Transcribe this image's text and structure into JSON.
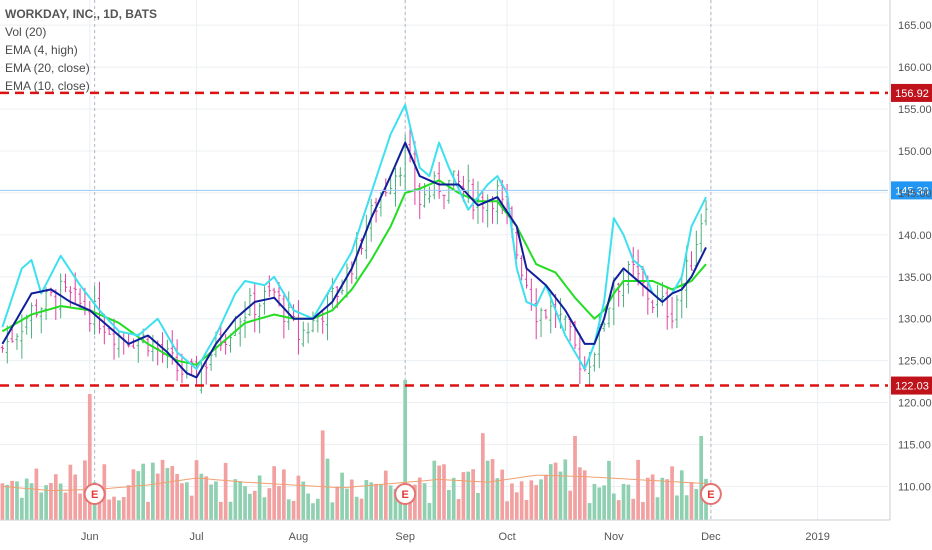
{
  "legend": {
    "title": "WORKDAY, INC., 1D, BATS",
    "vol": "Vol (20)",
    "ema_high4": "EMA (4, high)",
    "ema_close20": "EMA (20, close)",
    "ema_close10": "EMA (10, close)"
  },
  "colors": {
    "up": "#4caf7d",
    "down": "#e040a0",
    "cyan": "#3ee0f0",
    "navy": "#10209a",
    "green": "#22dd22",
    "level": "#d11",
    "current": "#2196f3",
    "vol_up": "#8fd0b0",
    "vol_down": "#f2a0a0",
    "grid": "#eceff2",
    "axis_text": "#555555"
  },
  "chart_data": {
    "type": "candlestick",
    "title": "WORKDAY, INC., 1D, BATS",
    "y_axis_ticks": [
      "165.00",
      "160.00",
      "155.00",
      "150.00",
      "145.00",
      "140.00",
      "135.00",
      "130.00",
      "125.00",
      "120.00",
      "115.00",
      "110.00"
    ],
    "ylim": [
      106,
      168
    ],
    "x_axis_ticks": [
      "Jun",
      "Jul",
      "Aug",
      "Sep",
      "Oct",
      "Nov",
      "Dec",
      "2019"
    ],
    "x_tick_index": [
      18,
      40,
      61,
      83,
      104,
      126,
      146,
      168
    ],
    "x_count": 183,
    "last_bar_index": 145,
    "earnings_markers": {
      "label": "E",
      "bar_index": [
        19,
        83,
        146
      ]
    },
    "horizontal_levels": [
      {
        "value": 156.92,
        "label": "156.92",
        "style": "dashed"
      },
      {
        "value": 122.03,
        "label": "122.03",
        "style": "dashed"
      }
    ],
    "current_price": {
      "value": 145.3,
      "label": "145.30"
    },
    "anchors": [
      [
        0,
        126.5
      ],
      [
        6,
        131
      ],
      [
        12,
        133
      ],
      [
        18,
        131
      ],
      [
        24,
        128
      ],
      [
        30,
        127.5
      ],
      [
        36,
        124
      ],
      [
        40,
        123
      ],
      [
        44,
        127
      ],
      [
        50,
        131
      ],
      [
        56,
        133
      ],
      [
        61,
        128
      ],
      [
        64,
        129.5
      ],
      [
        70,
        134
      ],
      [
        78,
        145
      ],
      [
        83,
        149.5
      ],
      [
        86,
        144
      ],
      [
        90,
        146
      ],
      [
        94,
        146
      ],
      [
        98,
        144
      ],
      [
        102,
        145
      ],
      [
        106,
        138
      ],
      [
        110,
        131
      ],
      [
        114,
        131
      ],
      [
        120,
        124
      ],
      [
        123,
        128
      ],
      [
        126,
        134
      ],
      [
        130,
        135.5
      ],
      [
        134,
        132
      ],
      [
        138,
        131
      ],
      [
        142,
        137
      ],
      [
        145,
        144.5
      ]
    ],
    "ema_high4": [
      [
        0,
        129
      ],
      [
        4,
        136
      ],
      [
        6,
        137
      ],
      [
        8,
        133
      ],
      [
        12,
        137.5
      ],
      [
        16,
        134
      ],
      [
        20,
        131
      ],
      [
        24,
        128.5
      ],
      [
        28,
        128
      ],
      [
        32,
        130
      ],
      [
        36,
        126
      ],
      [
        40,
        124
      ],
      [
        44,
        128
      ],
      [
        48,
        133
      ],
      [
        50,
        134.5
      ],
      [
        54,
        134
      ],
      [
        56,
        135
      ],
      [
        60,
        131
      ],
      [
        64,
        130
      ],
      [
        68,
        134
      ],
      [
        72,
        138
      ],
      [
        76,
        145
      ],
      [
        80,
        152
      ],
      [
        83,
        155.5
      ],
      [
        86,
        148
      ],
      [
        88,
        147
      ],
      [
        90,
        151
      ],
      [
        92,
        148
      ],
      [
        96,
        143
      ],
      [
        100,
        146
      ],
      [
        102,
        147
      ],
      [
        104,
        145
      ],
      [
        106,
        136
      ],
      [
        108,
        132
      ],
      [
        110,
        131.5
      ],
      [
        112,
        134
      ],
      [
        116,
        128
      ],
      [
        120,
        124
      ],
      [
        122,
        127
      ],
      [
        124,
        132
      ],
      [
        126,
        142
      ],
      [
        128,
        140
      ],
      [
        130,
        137
      ],
      [
        132,
        136
      ],
      [
        134,
        133
      ],
      [
        136,
        132
      ],
      [
        138,
        133
      ],
      [
        140,
        135
      ],
      [
        142,
        141
      ],
      [
        145,
        144.5
      ]
    ],
    "ema_close10": [
      [
        0,
        127
      ],
      [
        4,
        131
      ],
      [
        6,
        133
      ],
      [
        10,
        133.5
      ],
      [
        14,
        132
      ],
      [
        18,
        131
      ],
      [
        22,
        129
      ],
      [
        26,
        127
      ],
      [
        30,
        128
      ],
      [
        34,
        126
      ],
      [
        38,
        123.5
      ],
      [
        40,
        123
      ],
      [
        44,
        127
      ],
      [
        48,
        130
      ],
      [
        52,
        132
      ],
      [
        56,
        132.5
      ],
      [
        60,
        130
      ],
      [
        64,
        130
      ],
      [
        68,
        132
      ],
      [
        72,
        136
      ],
      [
        76,
        142
      ],
      [
        80,
        147
      ],
      [
        83,
        151
      ],
      [
        86,
        147
      ],
      [
        90,
        146
      ],
      [
        94,
        146
      ],
      [
        98,
        143.5
      ],
      [
        102,
        144.5
      ],
      [
        106,
        141
      ],
      [
        108,
        136
      ],
      [
        112,
        134
      ],
      [
        116,
        131
      ],
      [
        120,
        127
      ],
      [
        122,
        127
      ],
      [
        124,
        130
      ],
      [
        126,
        134.5
      ],
      [
        128,
        136
      ],
      [
        130,
        135
      ],
      [
        134,
        133
      ],
      [
        136,
        132
      ],
      [
        138,
        133
      ],
      [
        140,
        133.5
      ],
      [
        142,
        135
      ],
      [
        145,
        138.5
      ]
    ],
    "ema_close20": [
      [
        0,
        128.5
      ],
      [
        6,
        130.5
      ],
      [
        12,
        131.5
      ],
      [
        18,
        131
      ],
      [
        24,
        129.5
      ],
      [
        30,
        127
      ],
      [
        36,
        125
      ],
      [
        40,
        124.5
      ],
      [
        44,
        126.5
      ],
      [
        50,
        129.5
      ],
      [
        56,
        130.5
      ],
      [
        60,
        130
      ],
      [
        64,
        130
      ],
      [
        68,
        131
      ],
      [
        72,
        133.5
      ],
      [
        76,
        137
      ],
      [
        80,
        141
      ],
      [
        83,
        145
      ],
      [
        86,
        145.5
      ],
      [
        90,
        146.5
      ],
      [
        94,
        145
      ],
      [
        98,
        144
      ],
      [
        102,
        144
      ],
      [
        106,
        141
      ],
      [
        110,
        136.5
      ],
      [
        114,
        135.5
      ],
      [
        118,
        132.5
      ],
      [
        122,
        130
      ],
      [
        124,
        131
      ],
      [
        126,
        133
      ],
      [
        128,
        134.5
      ],
      [
        134,
        134.5
      ],
      [
        138,
        133.5
      ],
      [
        142,
        134.5
      ],
      [
        145,
        136.5
      ]
    ],
    "volume_ma": [
      [
        0,
        1.2
      ],
      [
        10,
        1.05
      ],
      [
        20,
        1.1
      ],
      [
        30,
        1.25
      ],
      [
        40,
        1.5
      ],
      [
        50,
        1.35
      ],
      [
        60,
        1.25
      ],
      [
        70,
        1.15
      ],
      [
        80,
        1.3
      ],
      [
        90,
        1.45
      ],
      [
        100,
        1.35
      ],
      [
        110,
        1.6
      ],
      [
        120,
        1.55
      ],
      [
        130,
        1.45
      ],
      [
        140,
        1.35
      ],
      [
        145,
        1.3
      ]
    ],
    "volume_spikes": [
      [
        18,
        4.5
      ],
      [
        83,
        5.0
      ],
      [
        66,
        3.2
      ],
      [
        99,
        3.1
      ],
      [
        118,
        3.0
      ],
      [
        144,
        3.0
      ]
    ]
  }
}
